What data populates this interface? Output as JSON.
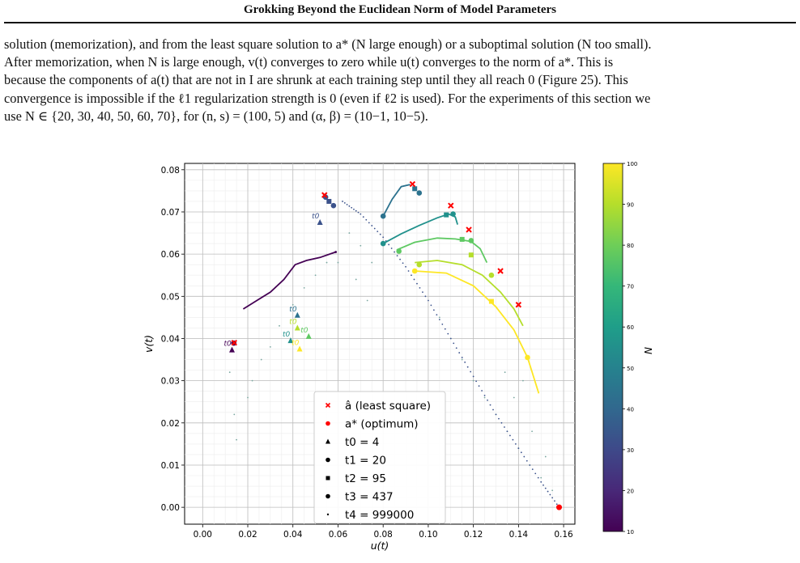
{
  "header": {
    "title": "Grokking Beyond the Euclidean Norm of Model Parameters"
  },
  "paragraph": {
    "lines": [
      "solution (memorization), and from the least square solution to a* (N large enough) or a suboptimal solution (N too small).",
      "After memorization, when N is large enough, v(t) converges to zero while u(t) converges to the norm of a*. This is",
      "because the components of a(t) that are not in I are shrunk at each training step until they all reach 0 (Figure 25). This",
      "convergence is impossible if the ℓ1 regularization strength is 0 (even if ℓ2 is used). For the experiments of this section we",
      "use N ∈ {20, 30, 40, 50, 60, 70}, for (n, s) = (100, 5) and (α, β) = (10−1, 10−5)."
    ],
    "figure_ref": "25"
  },
  "chart_data": {
    "type": "scatter",
    "title": "",
    "xlabel": "u(t)",
    "ylabel": "v(t)",
    "xlim": [
      -0.008,
      0.165
    ],
    "ylim": [
      -0.004,
      0.0815
    ],
    "xticks": [
      "0.00",
      "0.02",
      "0.04",
      "0.06",
      "0.08",
      "0.10",
      "0.12",
      "0.14",
      "0.16"
    ],
    "yticks": [
      "0.00",
      "0.01",
      "0.02",
      "0.03",
      "0.04",
      "0.05",
      "0.06",
      "0.07",
      "0.08"
    ],
    "grid": true,
    "legend": {
      "placement": "bottom-center",
      "entries": [
        {
          "marker": "x",
          "color": "#ff0000",
          "label": "â (least square)"
        },
        {
          "marker": "circle",
          "color": "#ff0000",
          "label": "a* (optimum)"
        },
        {
          "marker": "triangle",
          "color": "#000000",
          "label": "t0 = 4"
        },
        {
          "marker": "circle",
          "color": "#000000",
          "label": "t1 = 20"
        },
        {
          "marker": "square",
          "color": "#000000",
          "label": "t2 = 95"
        },
        {
          "marker": "circle",
          "color": "#000000",
          "label": "t3 = 437"
        },
        {
          "marker": "dot",
          "color": "#000000",
          "label": "t4 = 999000"
        }
      ]
    },
    "colorbar": {
      "label": "N",
      "min": 10,
      "max": 100,
      "ticks": [
        "10",
        "20",
        "30",
        "40",
        "50",
        "60",
        "70",
        "80",
        "90",
        "100"
      ],
      "colormap": "viridis"
    },
    "series": [
      {
        "N": 20,
        "color": "#440154",
        "path": [
          [
            0.018,
            0.047
          ],
          [
            0.024,
            0.049
          ],
          [
            0.03,
            0.051
          ],
          [
            0.036,
            0.054
          ],
          [
            0.041,
            0.0575
          ],
          [
            0.046,
            0.0585
          ],
          [
            0.052,
            0.0592
          ],
          [
            0.059,
            0.0605
          ]
        ],
        "t0": [
          0.013,
          0.0373
        ],
        "lsq": [
          0.014,
          0.039
        ],
        "t1": [
          0.0138,
          0.0389
        ],
        "t4": [
          0.059,
          0.0605
        ]
      },
      {
        "N": 30,
        "color": "#3b528b",
        "path": [],
        "t0": [
          0.052,
          0.0675
        ],
        "lsq": [
          0.054,
          0.074
        ],
        "t1": [
          0.0545,
          0.0735
        ],
        "t2": [
          0.056,
          0.0725
        ],
        "t3": [
          0.058,
          0.0715
        ],
        "opt": [
          0.158,
          0.0
        ]
      },
      {
        "N": 40,
        "color": "#2c728e",
        "path": [
          [
            0.08,
            0.069
          ],
          [
            0.084,
            0.073
          ],
          [
            0.088,
            0.076
          ],
          [
            0.092,
            0.0765
          ]
        ],
        "t0": [
          0.042,
          0.0455
        ],
        "lsq": [
          0.093,
          0.0766
        ],
        "t1": [
          0.08,
          0.069
        ],
        "t2": [
          0.094,
          0.0755
        ],
        "t3": [
          0.096,
          0.0745
        ]
      },
      {
        "N": 50,
        "color": "#21918c",
        "path": [
          [
            0.08,
            0.0625
          ],
          [
            0.088,
            0.0648
          ],
          [
            0.096,
            0.0668
          ],
          [
            0.104,
            0.0686
          ],
          [
            0.109,
            0.0695
          ],
          [
            0.112,
            0.0688
          ],
          [
            0.113,
            0.067
          ]
        ],
        "t0": [
          0.039,
          0.0395
        ],
        "lsq": [
          0.11,
          0.0715
        ],
        "t1": [
          0.08,
          0.0625
        ],
        "t2": [
          0.108,
          0.0693
        ],
        "t3": [
          0.111,
          0.0695
        ]
      },
      {
        "N": 60,
        "color": "#5ec962",
        "path": [
          [
            0.086,
            0.061
          ],
          [
            0.094,
            0.0628
          ],
          [
            0.104,
            0.0638
          ],
          [
            0.112,
            0.0636
          ],
          [
            0.119,
            0.063
          ],
          [
            0.123,
            0.0613
          ],
          [
            0.126,
            0.058
          ]
        ],
        "t0": [
          0.047,
          0.0405
        ],
        "lsq": [
          0.118,
          0.0658
        ],
        "t1": [
          0.087,
          0.0607
        ],
        "t2": [
          0.115,
          0.0635
        ],
        "t3": [
          0.119,
          0.0632
        ]
      },
      {
        "N": 70,
        "color": "#b5de2b",
        "path": [
          [
            0.094,
            0.058
          ],
          [
            0.104,
            0.0585
          ],
          [
            0.115,
            0.0575
          ],
          [
            0.124,
            0.055
          ],
          [
            0.132,
            0.051
          ],
          [
            0.138,
            0.047
          ],
          [
            0.142,
            0.043
          ]
        ],
        "t0": [
          0.042,
          0.0425
        ],
        "lsq": [
          0.132,
          0.056
        ],
        "t1": [
          0.096,
          0.0575
        ],
        "t2": [
          0.119,
          0.0598
        ],
        "t3": [
          0.128,
          0.055
        ]
      },
      {
        "N": 80,
        "color": "#fde725",
        "path": [
          [
            0.094,
            0.056
          ],
          [
            0.108,
            0.0555
          ],
          [
            0.12,
            0.0525
          ],
          [
            0.13,
            0.0475
          ],
          [
            0.138,
            0.042
          ],
          [
            0.144,
            0.0355
          ],
          [
            0.149,
            0.027
          ]
        ],
        "t0": [
          0.043,
          0.0375
        ],
        "lsq": [
          0.14,
          0.048
        ],
        "t1": [
          0.094,
          0.056
        ],
        "t2": [
          0.128,
          0.0488
        ],
        "t3": [
          0.144,
          0.0355
        ]
      }
    ],
    "decay_curve": [
      [
        0.062,
        0.0725
      ],
      [
        0.07,
        0.0695
      ],
      [
        0.08,
        0.064
      ],
      [
        0.09,
        0.057
      ],
      [
        0.1,
        0.049
      ],
      [
        0.11,
        0.04
      ],
      [
        0.12,
        0.031
      ],
      [
        0.13,
        0.022
      ],
      [
        0.14,
        0.014
      ],
      [
        0.15,
        0.006
      ],
      [
        0.158,
        0.0
      ]
    ],
    "scatter_fade": [
      [
        0.012,
        0.032
      ],
      [
        0.014,
        0.022
      ],
      [
        0.015,
        0.016
      ],
      [
        0.02,
        0.026
      ],
      [
        0.022,
        0.03
      ],
      [
        0.026,
        0.035
      ],
      [
        0.03,
        0.038
      ],
      [
        0.034,
        0.043
      ],
      [
        0.04,
        0.048
      ],
      [
        0.045,
        0.052
      ],
      [
        0.05,
        0.055
      ],
      [
        0.055,
        0.058
      ],
      [
        0.065,
        0.065
      ],
      [
        0.07,
        0.062
      ],
      [
        0.075,
        0.058
      ],
      [
        0.068,
        0.054
      ],
      [
        0.073,
        0.049
      ],
      [
        0.06,
        0.058
      ],
      [
        0.105,
        0.045
      ],
      [
        0.11,
        0.04
      ],
      [
        0.115,
        0.035
      ],
      [
        0.12,
        0.03
      ],
      [
        0.125,
        0.026
      ],
      [
        0.13,
        0.022
      ],
      [
        0.135,
        0.018
      ],
      [
        0.14,
        0.014
      ],
      [
        0.145,
        0.01
      ],
      [
        0.15,
        0.007
      ],
      [
        0.155,
        0.004
      ],
      [
        0.152,
        0.012
      ],
      [
        0.146,
        0.018
      ],
      [
        0.138,
        0.026
      ],
      [
        0.142,
        0.03
      ],
      [
        0.134,
        0.032
      ]
    ]
  }
}
